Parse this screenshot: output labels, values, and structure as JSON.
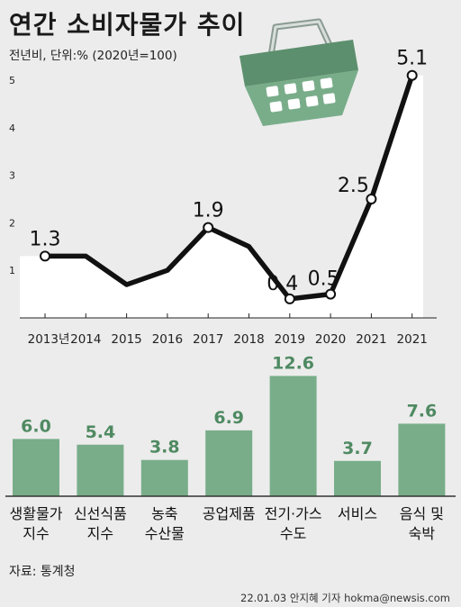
{
  "title": "연간 소비자물가 추이",
  "subtitle": "전년비, 단위:% (2020년=100)",
  "source": "자료: 통계청",
  "credit": "22.01.03 안지혜 기자 hokma@newsis.com",
  "icons": {
    "illustration": "shopping-basket-icon"
  },
  "colors": {
    "line": "#111111",
    "bar": "#79ad8a",
    "bar_label": "#4f8a62",
    "panel": "#ffffff",
    "background": "#ececec"
  },
  "chart_data": [
    {
      "type": "line",
      "x": [
        "2013년",
        "2014",
        "2015",
        "2016",
        "2017",
        "2018",
        "2019",
        "2020",
        "2021",
        "2021"
      ],
      "values": [
        1.3,
        1.3,
        0.7,
        1.0,
        1.9,
        1.5,
        0.4,
        0.5,
        2.5,
        5.1
      ],
      "labeled_points": [
        {
          "index": 0,
          "label": "1.3"
        },
        {
          "index": 4,
          "label": "1.9"
        },
        {
          "index": 6,
          "label": "0.4"
        },
        {
          "index": 7,
          "label": "0.5"
        },
        {
          "index": 8,
          "label": "2.5"
        },
        {
          "index": 9,
          "label": "5.1"
        }
      ],
      "y_ticks": [
        "1",
        "2",
        "3",
        "4",
        "5"
      ],
      "ylim": [
        0,
        5.5
      ],
      "grid": false
    },
    {
      "type": "bar",
      "categories": [
        "생활물가\n지수",
        "신선식품\n지수",
        "농축\n수산물",
        "공업제품",
        "전기·가스\n수도",
        "서비스",
        "음식 및\n숙박"
      ],
      "values": [
        6.0,
        5.4,
        3.8,
        6.9,
        12.6,
        3.7,
        7.6
      ],
      "labels": [
        "6.0",
        "5.4",
        "3.8",
        "6.9",
        "12.6",
        "3.7",
        "7.6"
      ]
    }
  ]
}
